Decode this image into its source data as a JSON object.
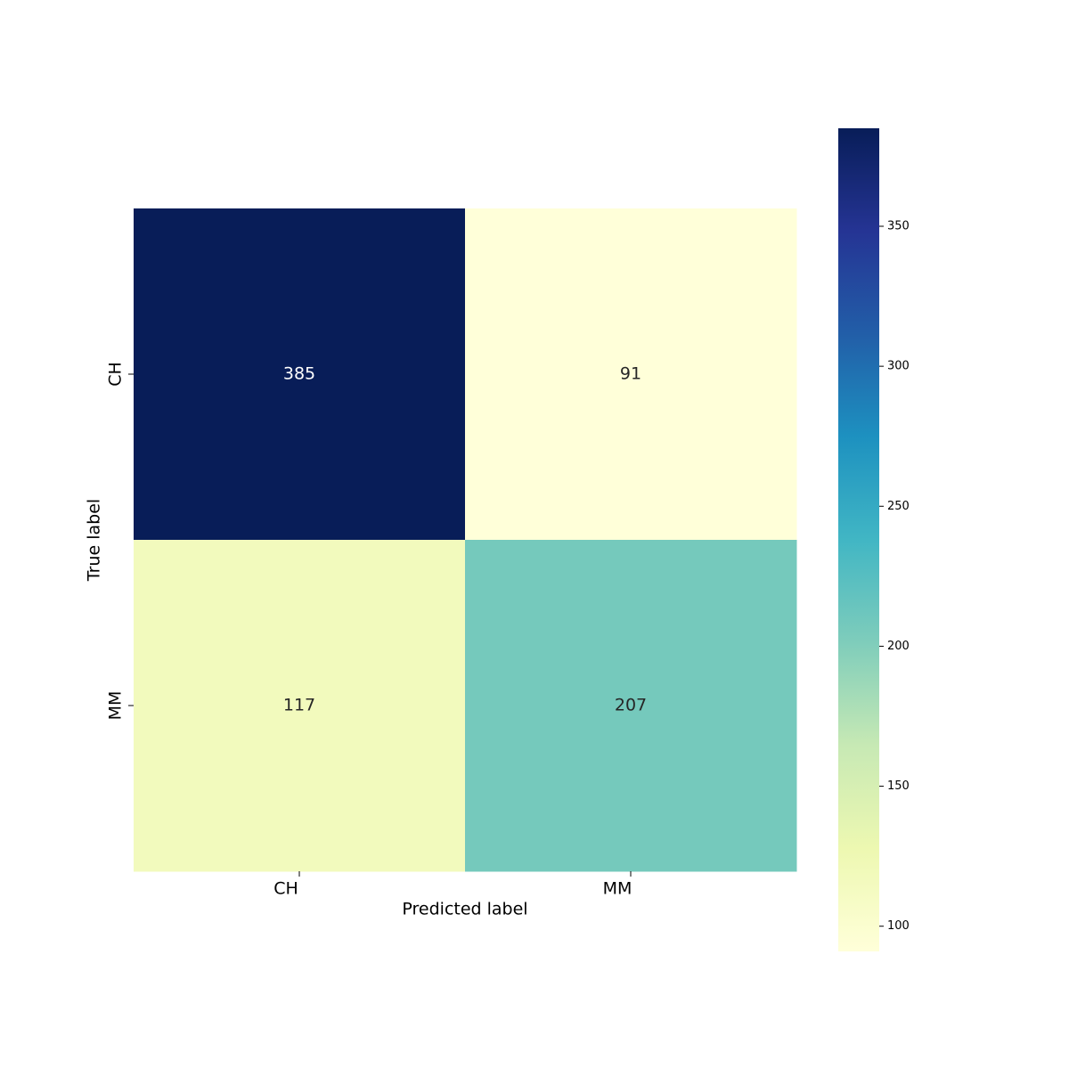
{
  "chart_data": {
    "type": "heatmap",
    "x_categories": [
      "CH",
      "MM"
    ],
    "y_categories": [
      "CH",
      "MM"
    ],
    "values": [
      [
        385,
        91
      ],
      [
        117,
        207
      ]
    ],
    "xlabel": "Predicted label",
    "ylabel": "True label",
    "clim": [
      91,
      385
    ],
    "cticks": [
      100,
      150,
      200,
      250,
      300,
      350
    ],
    "colormap": [
      "#ffffd9",
      "#edf8b1",
      "#c7e9b4",
      "#7fcdbb",
      "#41b6c4",
      "#1d91c0",
      "#225ea8",
      "#253494",
      "#081d58"
    ]
  }
}
